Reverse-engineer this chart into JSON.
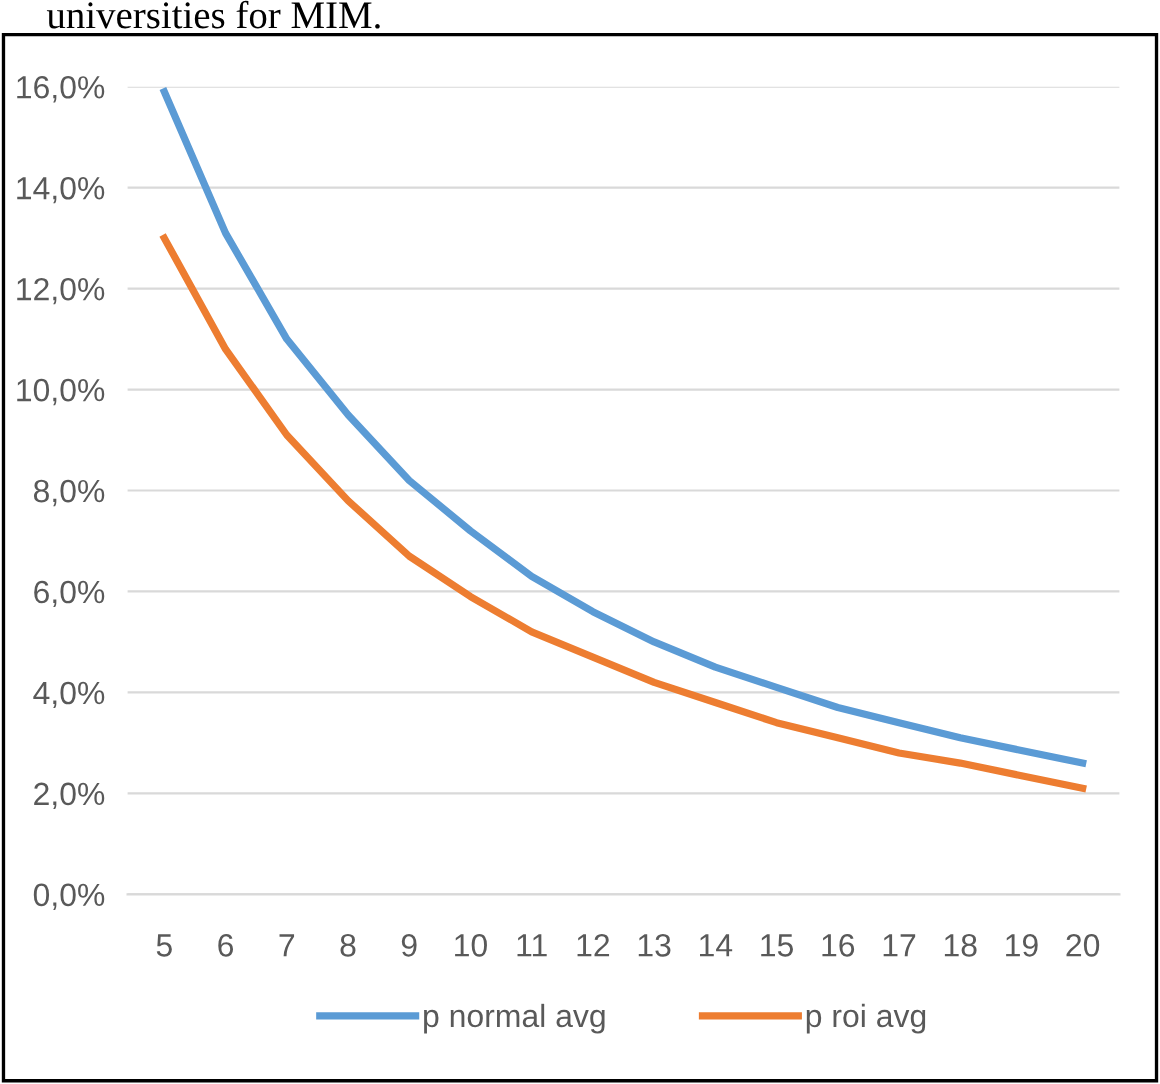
{
  "chart_data": {
    "type": "line",
    "annotations": [
      "universities for MIM."
    ],
    "categories": [
      "5",
      "6",
      "7",
      "8",
      "9",
      "10",
      "11",
      "12",
      "13",
      "14",
      "15",
      "16",
      "17",
      "18",
      "19",
      "20"
    ],
    "series": [
      {
        "name": "p normal avg",
        "color": "#5b9bd5",
        "values": [
          15.9,
          13.1,
          11.0,
          9.5,
          8.2,
          7.2,
          6.3,
          5.6,
          5.0,
          4.5,
          4.1,
          3.7,
          3.4,
          3.1,
          2.85,
          2.6
        ]
      },
      {
        "name": "p roi avg",
        "color": "#ed7d31",
        "values": [
          13.0,
          10.8,
          9.1,
          7.8,
          6.7,
          5.9,
          5.2,
          4.7,
          4.2,
          3.8,
          3.4,
          3.1,
          2.8,
          2.6,
          2.35,
          2.1
        ]
      }
    ],
    "ylim": [
      0,
      16
    ],
    "yticks": [
      {
        "value": 0,
        "label": "0,0%"
      },
      {
        "value": 2,
        "label": "2,0%"
      },
      {
        "value": 4,
        "label": "4,0%"
      },
      {
        "value": 6,
        "label": "6,0%"
      },
      {
        "value": 8,
        "label": "8,0%"
      },
      {
        "value": 10,
        "label": "10,0%"
      },
      {
        "value": 12,
        "label": "12,0%"
      },
      {
        "value": 14,
        "label": "14,0%"
      },
      {
        "value": 16,
        "label": "16,0%"
      }
    ],
    "grid": "y",
    "legend": "bottom",
    "marker": "none",
    "line_style": "solid"
  }
}
